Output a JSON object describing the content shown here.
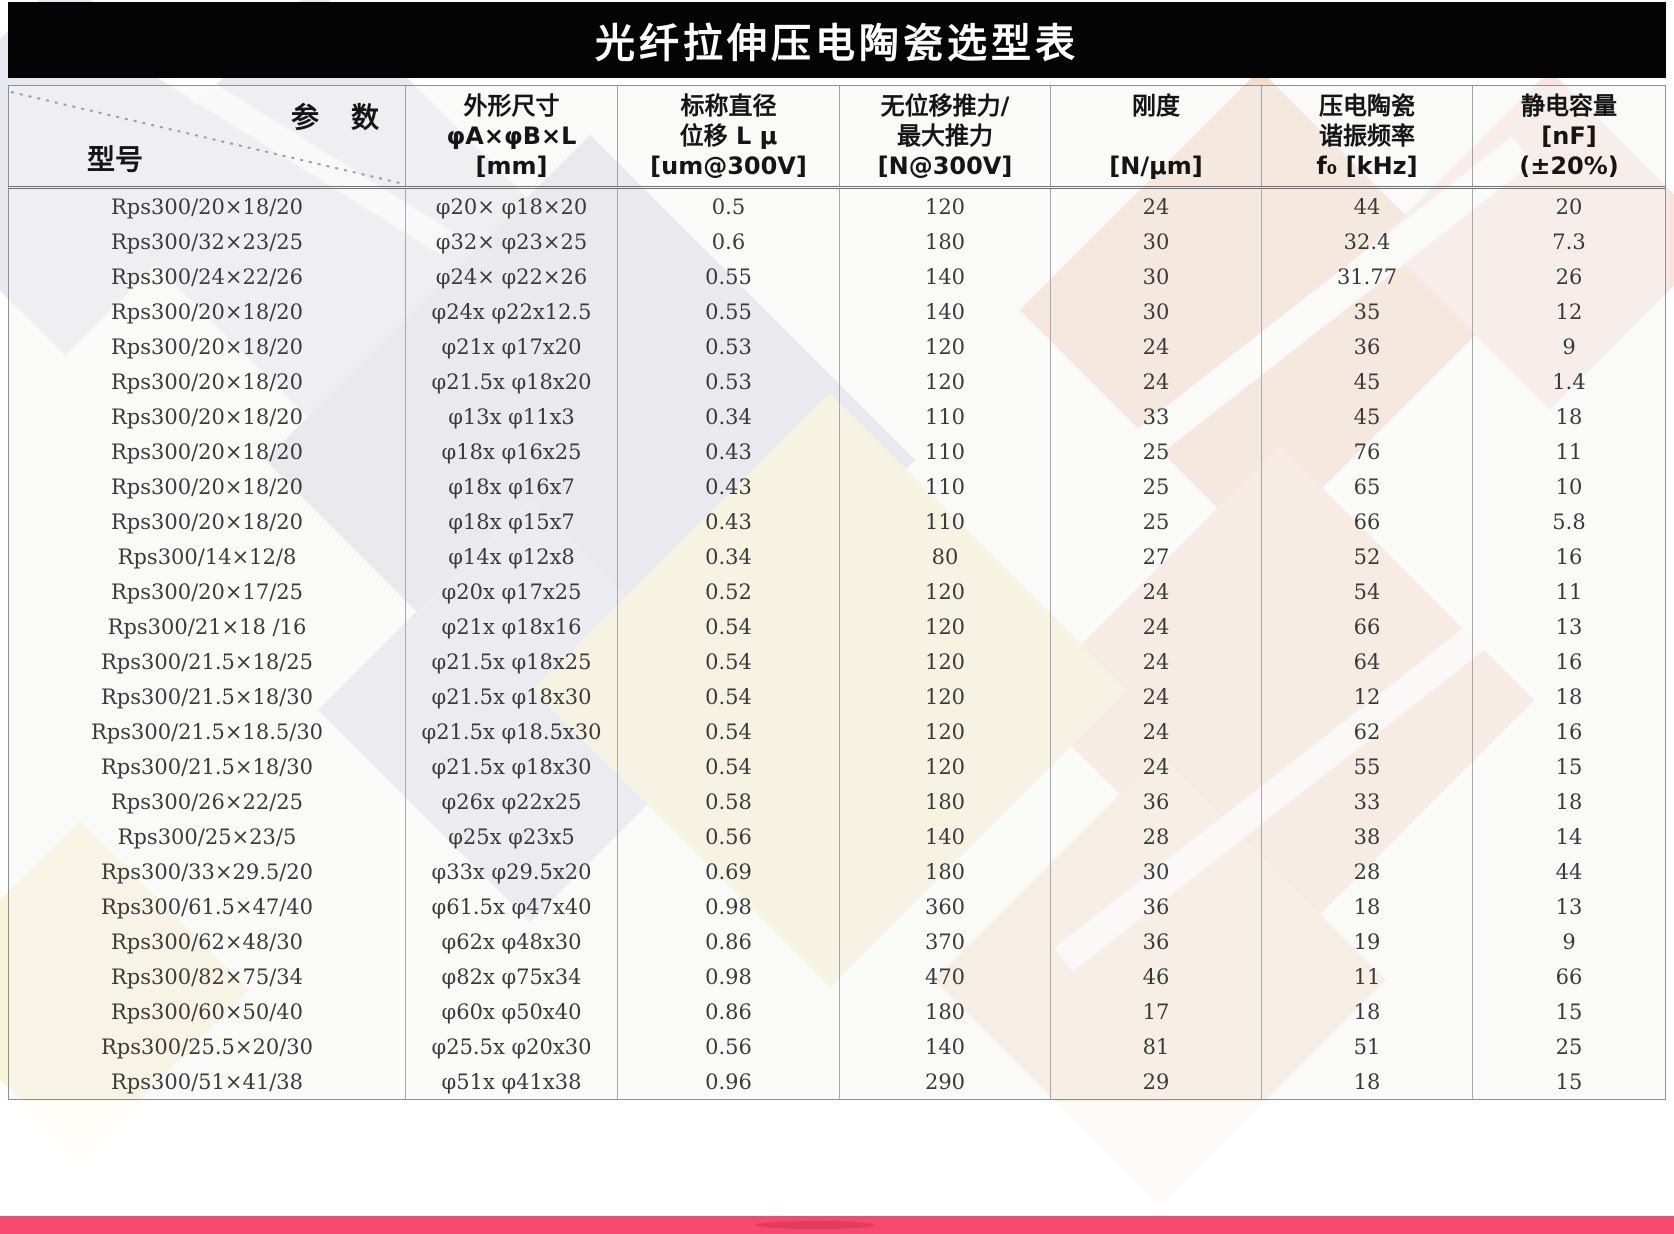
{
  "title": "光纤拉伸压电陶瓷选型表",
  "table": {
    "corner": {
      "param_label": "参　数",
      "model_label": "型号"
    },
    "columns": [
      {
        "line1": "外形尺寸",
        "line2": "φA×φB×L",
        "line3": "[mm]"
      },
      {
        "line1": "标称直径",
        "line2": "位移 L μ",
        "line3": "[um@300V]"
      },
      {
        "line1": "无位移推力/",
        "line2": "最大推力",
        "line3": "[N@300V]"
      },
      {
        "line1": "刚度",
        "line2": "",
        "line3": "[N/μm]"
      },
      {
        "line1": "压电陶瓷",
        "line2": "谐振频率",
        "line3": "f₀ [kHz]"
      },
      {
        "line1": "静电容量",
        "line2": "[nF]",
        "line3": "(±20%)"
      }
    ],
    "rows": [
      [
        "Rps300/20×18/20",
        "φ20× φ18×20",
        "0.5",
        "120",
        "24",
        "44",
        "20"
      ],
      [
        "Rps300/32×23/25",
        "φ32× φ23×25",
        "0.6",
        "180",
        "30",
        "32.4",
        "7.3"
      ],
      [
        "Rps300/24×22/26",
        "φ24× φ22×26",
        "0.55",
        "140",
        "30",
        "31.77",
        "26"
      ],
      [
        "Rps300/20×18/20",
        "φ24x φ22x12.5",
        "0.55",
        "140",
        "30",
        "35",
        "12"
      ],
      [
        "Rps300/20×18/20",
        "φ21x φ17x20",
        "0.53",
        "120",
        "24",
        "36",
        "9"
      ],
      [
        "Rps300/20×18/20",
        "φ21.5x φ18x20",
        "0.53",
        "120",
        "24",
        "45",
        "1.4"
      ],
      [
        "Rps300/20×18/20",
        "φ13x φ11x3",
        "0.34",
        "110",
        "33",
        "45",
        "18"
      ],
      [
        "Rps300/20×18/20",
        "φ18x φ16x25",
        "0.43",
        "110",
        "25",
        "76",
        "11"
      ],
      [
        "Rps300/20×18/20",
        "φ18x φ16x7",
        "0.43",
        "110",
        "25",
        "65",
        "10"
      ],
      [
        "Rps300/20×18/20",
        "φ18x φ15x7",
        "0.43",
        "110",
        "25",
        "66",
        "5.8"
      ],
      [
        "Rps300/14×12/8",
        "φ14x φ12x8",
        "0.34",
        "80",
        "27",
        "52",
        "16"
      ],
      [
        "Rps300/20×17/25",
        "φ20x φ17x25",
        "0.52",
        "120",
        "24",
        "54",
        "11"
      ],
      [
        "Rps300/21×18 /16",
        "φ21x φ18x16",
        "0.54",
        "120",
        "24",
        "66",
        "13"
      ],
      [
        "Rps300/21.5×18/25",
        "φ21.5x φ18x25",
        "0.54",
        "120",
        "24",
        "64",
        "16"
      ],
      [
        "Rps300/21.5×18/30",
        "φ21.5x φ18x30",
        "0.54",
        "120",
        "24",
        "12",
        "18"
      ],
      [
        "Rps300/21.5×18.5/30",
        "φ21.5x φ18.5x30",
        "0.54",
        "120",
        "24",
        "62",
        "16"
      ],
      [
        "Rps300/21.5×18/30",
        "φ21.5x φ18x30",
        "0.54",
        "120",
        "24",
        "55",
        "15"
      ],
      [
        "Rps300/26×22/25",
        "φ26x φ22x25",
        "0.58",
        "180",
        "36",
        "33",
        "18"
      ],
      [
        "Rps300/25×23/5",
        "φ25x φ23x5",
        "0.56",
        "140",
        "28",
        "38",
        "14"
      ],
      [
        "Rps300/33×29.5/20",
        "φ33x φ29.5x20",
        "0.69",
        "180",
        "30",
        "28",
        "44"
      ],
      [
        "Rps300/61.5×47/40",
        "φ61.5x φ47x40",
        "0.98",
        "360",
        "36",
        "18",
        "13"
      ],
      [
        "Rps300/62×48/30",
        "φ62x φ48x30",
        "0.86",
        "370",
        "36",
        "19",
        "9"
      ],
      [
        "Rps300/82×75/34",
        "φ82x φ75x34",
        "0.98",
        "470",
        "46",
        "11",
        "66"
      ],
      [
        "Rps300/60×50/40",
        "φ60x φ50x40",
        "0.86",
        "180",
        "17",
        "18",
        "15"
      ],
      [
        "Rps300/25.5×20/30",
        "φ25.5x φ20x30",
        "0.56",
        "140",
        "81",
        "51",
        "25"
      ],
      [
        "Rps300/51×41/38",
        "φ51x φ41x38",
        "0.96",
        "290",
        "29",
        "18",
        "15"
      ]
    ]
  },
  "footer": {
    "bar_color": "#f7496d"
  }
}
